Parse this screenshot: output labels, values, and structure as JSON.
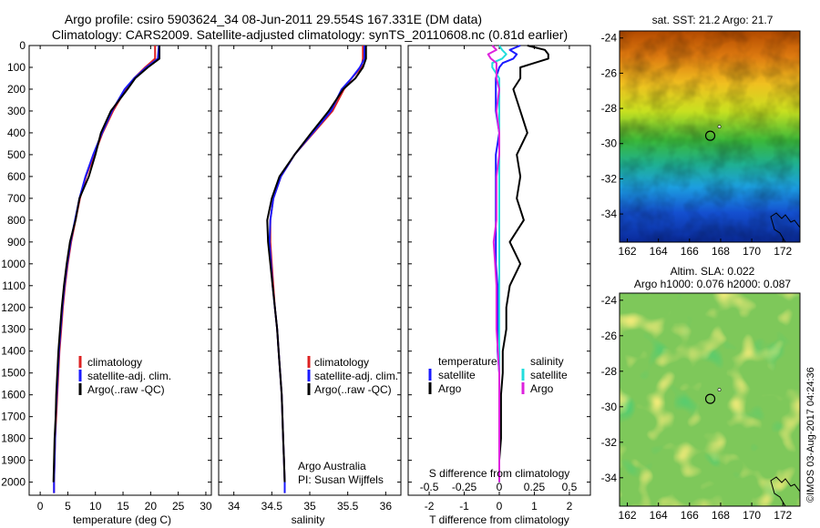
{
  "header": {
    "line1": "Argo profile: csiro 5903624_34 08-Jun-2011 29.554S 167.331E (DM data)",
    "line2": "Climatology: CARS2009. Satellite-adjusted climatology: synTS_20110608.nc (0.81d earlier)"
  },
  "colors": {
    "climatology": "#dd2222",
    "satellite": "#1a1aff",
    "argo": "#000000",
    "salinity_sat": "#22dddd",
    "salinity_argo": "#dd22dd"
  },
  "depth_ticks": [
    "0",
    "100",
    "200",
    "300",
    "400",
    "500",
    "600",
    "700",
    "800",
    "900",
    "1000",
    "1100",
    "1200",
    "1300",
    "1400",
    "1500",
    "1600",
    "1700",
    "1800",
    "1900",
    "2000"
  ],
  "chart_data": [
    {
      "id": "temperature",
      "type": "line",
      "xlabel": "temperature (deg C)",
      "ylabel": "",
      "xlim": [
        -2,
        31
      ],
      "ylim": [
        2060,
        0
      ],
      "xticks": [
        "0",
        "5",
        "10",
        "15",
        "20",
        "25",
        "30"
      ],
      "xtick_values": [
        0,
        5,
        10,
        15,
        20,
        25,
        30
      ],
      "legend": [
        "climatology",
        "satellite-adj. clim.",
        "Argo(..raw -QC)"
      ],
      "depth": [
        0,
        60,
        100,
        150,
        200,
        300,
        400,
        500,
        600,
        700,
        800,
        900,
        1000,
        1100,
        1200,
        1300,
        1400,
        1500,
        1600,
        1700,
        1800,
        1900,
        2000,
        2050
      ],
      "series": [
        {
          "name": "climatology",
          "values": [
            20.8,
            20.8,
            19.0,
            17.0,
            15.5,
            13.2,
            11.3,
            9.8,
            8.3,
            7.2,
            6.4,
            5.6,
            5.0,
            4.5,
            4.1,
            3.8,
            3.5,
            3.3,
            3.1,
            2.9,
            2.7,
            2.6,
            2.5,
            2.5
          ]
        },
        {
          "name": "satellite-adj. clim.",
          "values": [
            21.5,
            21.3,
            19.2,
            17.0,
            15.3,
            13.0,
            11.2,
            9.6,
            8.2,
            7.1,
            6.3,
            5.5,
            4.9,
            4.4,
            4.0,
            3.7,
            3.4,
            3.2,
            3.0,
            2.8,
            2.7,
            2.6,
            2.5,
            2.5
          ]
        },
        {
          "name": "Argo(..raw -QC)",
          "values": [
            21.6,
            21.6,
            19.5,
            17.2,
            15.8,
            12.8,
            11.0,
            10.0,
            8.8,
            7.1,
            6.4,
            5.4,
            4.8,
            4.3,
            3.9,
            3.6,
            3.3,
            3.1,
            2.9,
            2.8,
            2.6,
            2.5,
            2.4,
            null
          ]
        }
      ]
    },
    {
      "id": "salinity",
      "type": "line",
      "xlabel": "salinity",
      "ylabel": "",
      "xlim": [
        33.8,
        36.2
      ],
      "ylim": [
        2060,
        0
      ],
      "xticks": [
        "34",
        "34.5",
        "35",
        "35.5",
        "36"
      ],
      "xtick_values": [
        34,
        34.5,
        35,
        35.5,
        36
      ],
      "legend": [
        "climatology",
        "satellite-adj. clim.",
        "Argo(..raw -QC)"
      ],
      "annotation": [
        "Argo Australia",
        "PI: Susan Wijffels"
      ],
      "depth": [
        0,
        60,
        100,
        150,
        200,
        300,
        400,
        500,
        600,
        700,
        800,
        900,
        1000,
        1100,
        1200,
        1300,
        1400,
        1500,
        1600,
        1700,
        1800,
        1900,
        2000,
        2050
      ],
      "series": [
        {
          "name": "climatology",
          "values": [
            35.7,
            35.7,
            35.68,
            35.55,
            35.45,
            35.3,
            35.05,
            34.8,
            34.62,
            34.52,
            34.48,
            34.48,
            34.5,
            34.52,
            34.54,
            34.57,
            34.59,
            34.61,
            34.63,
            34.64,
            34.65,
            34.66,
            34.67,
            34.67
          ]
        },
        {
          "name": "satellite-adj. clim.",
          "values": [
            35.72,
            35.72,
            35.66,
            35.55,
            35.42,
            35.28,
            35.04,
            34.8,
            34.62,
            34.52,
            34.48,
            34.47,
            34.49,
            34.51,
            34.54,
            34.57,
            34.59,
            34.61,
            34.63,
            34.64,
            34.65,
            34.66,
            34.67,
            34.67
          ]
        },
        {
          "name": "Argo(..raw -QC)",
          "values": [
            35.74,
            35.74,
            35.7,
            35.6,
            35.44,
            35.25,
            35.02,
            34.8,
            34.6,
            34.5,
            34.44,
            34.45,
            34.48,
            34.51,
            34.54,
            34.57,
            34.59,
            34.61,
            34.63,
            34.64,
            34.65,
            34.66,
            34.67,
            null
          ]
        }
      ]
    },
    {
      "id": "differences",
      "type": "line",
      "xlabel": "T difference from climatology",
      "xlabel_top": "S difference from climatology",
      "xlim": [
        -2.6,
        2.6
      ],
      "ylim": [
        2060,
        0
      ],
      "xticks_T": [
        "-2",
        "-1",
        "0",
        "1",
        "2"
      ],
      "xtick_values_T": [
        -2,
        -1,
        0,
        1,
        2
      ],
      "xticks_S": [
        "-0.5",
        "-0.25",
        "0",
        "0.25",
        "0.5"
      ],
      "xtick_values_S": [
        -0.5,
        -0.25,
        0,
        0.25,
        0.5
      ],
      "legend_temperature": [
        "temperature",
        "satellite",
        "Argo"
      ],
      "legend_salinity": [
        "salinity",
        "satellite",
        "Argo"
      ],
      "depth": [
        0,
        20,
        40,
        60,
        80,
        100,
        150,
        200,
        300,
        400,
        500,
        600,
        700,
        800,
        900,
        1000,
        1100,
        1200,
        1300,
        1400,
        1500,
        1600,
        1700,
        1800,
        1900,
        2000
      ],
      "series": [
        {
          "name": "temperature satellite",
          "values": [
            0.6,
            0.3,
            0.5,
            0.4,
            0.1,
            0.0,
            -0.1,
            -0.1,
            -0.1,
            0.0,
            -0.1,
            -0.1,
            -0.1,
            -0.1,
            -0.1,
            -0.1,
            -0.05,
            -0.05,
            -0.05,
            -0.05,
            0,
            0,
            0,
            0,
            0,
            0
          ]
        },
        {
          "name": "temperature Argo",
          "values": [
            0.8,
            1.3,
            1.4,
            1.4,
            1.0,
            0.6,
            0.6,
            0.4,
            0.6,
            0.8,
            0.5,
            0.6,
            0.5,
            0.7,
            0.3,
            0.6,
            0.3,
            0.2,
            0.2,
            0.1,
            0.1,
            0.05,
            0.05,
            0.05,
            0.0,
            0.0
          ]
        },
        {
          "name": "salinity satellite",
          "values": [
            0.0,
            0.02,
            0.05,
            0.02,
            -0.05,
            -0.05,
            0.0,
            0.0,
            0.0,
            0.0,
            0.0,
            0.0,
            0.0,
            0.0,
            0.0,
            0.0,
            0.0,
            0.0,
            0.0,
            0.0,
            0.0,
            0.0,
            0.0,
            0.0,
            0.0,
            0.0
          ]
        },
        {
          "name": "salinity Argo",
          "values": [
            -0.05,
            -0.02,
            -0.08,
            -0.06,
            -0.02,
            -0.02,
            -0.02,
            0.0,
            -0.02,
            0.0,
            0.0,
            -0.02,
            -0.02,
            -0.02,
            -0.04,
            -0.03,
            -0.02,
            -0.02,
            -0.02,
            -0.01,
            0.0,
            0.0,
            0.0,
            0.0,
            0.0,
            0.0
          ]
        }
      ]
    },
    {
      "id": "sst-map",
      "type": "heatmap",
      "title": "sat. SST: 21.2  Argo: 21.7",
      "xticks": [
        "162",
        "164",
        "166",
        "168",
        "170",
        "172"
      ],
      "xtick_values": [
        162,
        164,
        166,
        168,
        170,
        172
      ],
      "yticks": [
        "-24",
        "-26",
        "-28",
        "-30",
        "-32",
        "-34"
      ],
      "ytick_values": [
        -24,
        -26,
        -28,
        -30,
        -32,
        -34
      ],
      "xlim": [
        161.5,
        173.1
      ],
      "ylim": [
        -35.6,
        -23.6
      ],
      "profile": {
        "lon": 167.331,
        "lat": -29.554
      }
    },
    {
      "id": "sla-map",
      "type": "heatmap",
      "title_line1": "Altim. SLA: 0.022",
      "title_line2": "Argo h1000: 0.076 h2000: 0.087",
      "xticks": [
        "162",
        "164",
        "166",
        "168",
        "170",
        "172"
      ],
      "xtick_values": [
        162,
        164,
        166,
        168,
        170,
        172
      ],
      "yticks": [
        "-24",
        "-26",
        "-28",
        "-30",
        "-32",
        "-34"
      ],
      "ytick_values": [
        -24,
        -26,
        -28,
        -30,
        -32,
        -34
      ],
      "xlim": [
        161.5,
        173.1
      ],
      "ylim": [
        -35.6,
        -23.6
      ],
      "profile": {
        "lon": 167.331,
        "lat": -29.554
      }
    }
  ],
  "credit": "©IMOS 03-Aug-2017 04:24:36"
}
